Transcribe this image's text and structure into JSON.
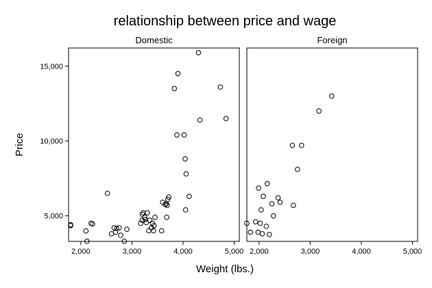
{
  "chart_data": {
    "type": "scatter",
    "title": "relationship between price and wage",
    "xlabel": "Weight (lbs.)",
    "ylabel": "Price",
    "xlim": [
      1760,
      5100
    ],
    "ylim": [
      3291,
      16210
    ],
    "xticks": [
      2000,
      3000,
      4000,
      5000
    ],
    "xtick_labels": [
      "2,000",
      "3,000",
      "4,000",
      "5,000"
    ],
    "yticks": [
      5000,
      10000,
      15000
    ],
    "ytick_labels": [
      "5,000",
      "10,000",
      "15,000"
    ],
    "grid": false,
    "marker": "hollow-circle",
    "panels": [
      {
        "name": "Domestic",
        "points": [
          [
            1800,
            4400
          ],
          [
            1800,
            4350
          ],
          [
            2100,
            3990
          ],
          [
            2120,
            3300
          ],
          [
            2200,
            4500
          ],
          [
            2230,
            4450
          ],
          [
            2520,
            6500
          ],
          [
            2600,
            3800
          ],
          [
            2650,
            4200
          ],
          [
            2680,
            3900
          ],
          [
            2700,
            4150
          ],
          [
            2750,
            4200
          ],
          [
            2780,
            3700
          ],
          [
            2850,
            3300
          ],
          [
            2900,
            4100
          ],
          [
            3170,
            4500
          ],
          [
            3200,
            5100
          ],
          [
            3200,
            4700
          ],
          [
            3220,
            5200
          ],
          [
            3250,
            4900
          ],
          [
            3260,
            4750
          ],
          [
            3280,
            4550
          ],
          [
            3300,
            5200
          ],
          [
            3330,
            4000
          ],
          [
            3350,
            4700
          ],
          [
            3380,
            4200
          ],
          [
            3400,
            4500
          ],
          [
            3420,
            4000
          ],
          [
            3430,
            4350
          ],
          [
            3450,
            4900
          ],
          [
            3580,
            4000
          ],
          [
            3600,
            5900
          ],
          [
            3650,
            5750
          ],
          [
            3670,
            5800
          ],
          [
            3680,
            4900
          ],
          [
            3690,
            5700
          ],
          [
            3700,
            6100
          ],
          [
            3720,
            6250
          ],
          [
            3830,
            13500
          ],
          [
            3880,
            10400
          ],
          [
            3900,
            14500
          ],
          [
            4020,
            10400
          ],
          [
            4040,
            8800
          ],
          [
            4050,
            5400
          ],
          [
            4060,
            7800
          ],
          [
            4120,
            6300
          ],
          [
            4300,
            15900
          ],
          [
            4330,
            11400
          ],
          [
            4730,
            13600
          ],
          [
            4840,
            11500
          ]
        ]
      },
      {
        "name": "Foreign",
        "points": [
          [
            1760,
            4500
          ],
          [
            1830,
            3900
          ],
          [
            1930,
            4600
          ],
          [
            1980,
            3900
          ],
          [
            1990,
            6850
          ],
          [
            2020,
            4500
          ],
          [
            2040,
            5400
          ],
          [
            2060,
            3800
          ],
          [
            2080,
            6300
          ],
          [
            2140,
            4300
          ],
          [
            2160,
            7150
          ],
          [
            2200,
            3750
          ],
          [
            2250,
            5800
          ],
          [
            2280,
            5000
          ],
          [
            2370,
            6200
          ],
          [
            2410,
            5900
          ],
          [
            2650,
            9700
          ],
          [
            2670,
            5700
          ],
          [
            2750,
            8100
          ],
          [
            2830,
            9700
          ],
          [
            3170,
            12000
          ],
          [
            3420,
            13000
          ]
        ]
      }
    ]
  }
}
